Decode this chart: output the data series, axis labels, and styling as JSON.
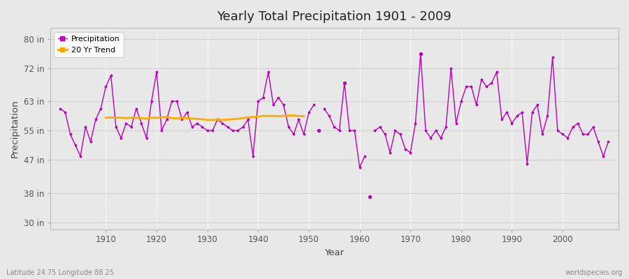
{
  "title": "Yearly Total Precipitation 1901 - 2009",
  "xlabel": "Year",
  "ylabel": "Precipitation",
  "yticks": [
    30,
    38,
    47,
    55,
    63,
    72,
    80
  ],
  "ytick_labels": [
    "30 in",
    "38 in",
    "47 in",
    "55 in",
    "63 in",
    "72 in",
    "80 in"
  ],
  "xticks": [
    1910,
    1920,
    1930,
    1940,
    1950,
    1960,
    1970,
    1980,
    1990,
    2000
  ],
  "ylim": [
    28,
    83
  ],
  "xlim": [
    1899,
    2011
  ],
  "background_color": "#e8e8e8",
  "plot_bg_color": "#e8e8e8",
  "line_color": "#bb00bb",
  "trend_color": "#ffaa00",
  "grid_color_h": "#d0d0d0",
  "grid_color_v": "#ffffff",
  "subtitle_left": "Latitude 24.75 Longitude 88.25",
  "subtitle_right": "worldspecies.org",
  "segments": [
    [
      1901,
      1902,
      1903,
      1904,
      1905,
      1906,
      1907,
      1908,
      1909,
      1910,
      1911,
      1912,
      1913,
      1914,
      1915,
      1916,
      1917,
      1918,
      1919,
      1920,
      1921,
      1922,
      1923,
      1924,
      1925,
      1926,
      1927,
      1928,
      1929,
      1930,
      1931,
      1932,
      1933,
      1934,
      1935,
      1936,
      1937,
      1938,
      1939,
      1940,
      1941,
      1942,
      1943,
      1944,
      1945,
      1946,
      1947,
      1948,
      1949,
      1950,
      1951
    ],
    [
      1953,
      1954,
      1955,
      1956,
      1957,
      1958,
      1959,
      1960,
      1961
    ],
    [
      1963,
      1964,
      1965,
      1966,
      1967,
      1968,
      1969,
      1970,
      1971,
      1972,
      1973,
      1974,
      1975,
      1976,
      1977,
      1978,
      1979,
      1980,
      1981,
      1982,
      1983,
      1984,
      1985,
      1986,
      1987,
      1988,
      1989,
      1990,
      1991,
      1992,
      1993,
      1994,
      1995,
      1996,
      1997,
      1998,
      1999,
      2000,
      2001,
      2002,
      2003,
      2004,
      2005,
      2006,
      2007,
      2008,
      2009
    ]
  ],
  "segment_values": [
    [
      61,
      60,
      54,
      51,
      48,
      56,
      52,
      58,
      61,
      67,
      70,
      56,
      53,
      57,
      56,
      61,
      57,
      53,
      63,
      71,
      55,
      58,
      63,
      63,
      58,
      60,
      56,
      57,
      56,
      55,
      55,
      58,
      57,
      56,
      55,
      55,
      56,
      58,
      48,
      63,
      64,
      71,
      62,
      64,
      62,
      56,
      54,
      58,
      54,
      60,
      62
    ],
    [
      61,
      59,
      56,
      55,
      68,
      55,
      55,
      45,
      48
    ],
    [
      55,
      56,
      54,
      49,
      55,
      54,
      50,
      49,
      57,
      76,
      55,
      53,
      55,
      53,
      56,
      72,
      57,
      63,
      67,
      67,
      62,
      69,
      67,
      68,
      71,
      58,
      60,
      57,
      59,
      60,
      46,
      60,
      62,
      54,
      59,
      75,
      55,
      54,
      53,
      56,
      57,
      54,
      54,
      56,
      52,
      48,
      52
    ]
  ],
  "isolated_points": [
    [
      1952,
      55
    ],
    [
      1957,
      68
    ],
    [
      1962,
      37
    ],
    [
      1972,
      76
    ]
  ],
  "trend_years": [
    1910,
    1911,
    1912,
    1913,
    1914,
    1915,
    1916,
    1917,
    1918,
    1919,
    1920,
    1921,
    1922,
    1923,
    1924,
    1925,
    1926,
    1927,
    1928,
    1929,
    1930,
    1931,
    1932,
    1933,
    1934,
    1935,
    1936,
    1937,
    1938,
    1939,
    1940,
    1941,
    1942,
    1943,
    1944,
    1945,
    1946,
    1947,
    1948,
    1949
  ],
  "trend_values": [
    58.5,
    58.6,
    58.5,
    58.5,
    58.4,
    58.5,
    58.5,
    58.4,
    58.3,
    58.5,
    58.5,
    58.6,
    58.7,
    58.4,
    58.3,
    58.4,
    58.4,
    58.3,
    58.2,
    58.1,
    57.9,
    57.9,
    58.0,
    57.9,
    58.0,
    58.1,
    58.2,
    58.4,
    58.6,
    58.7,
    58.8,
    59.0,
    59.0,
    59.0,
    58.9,
    59.0,
    59.1,
    59.1,
    59.0,
    58.9
  ]
}
